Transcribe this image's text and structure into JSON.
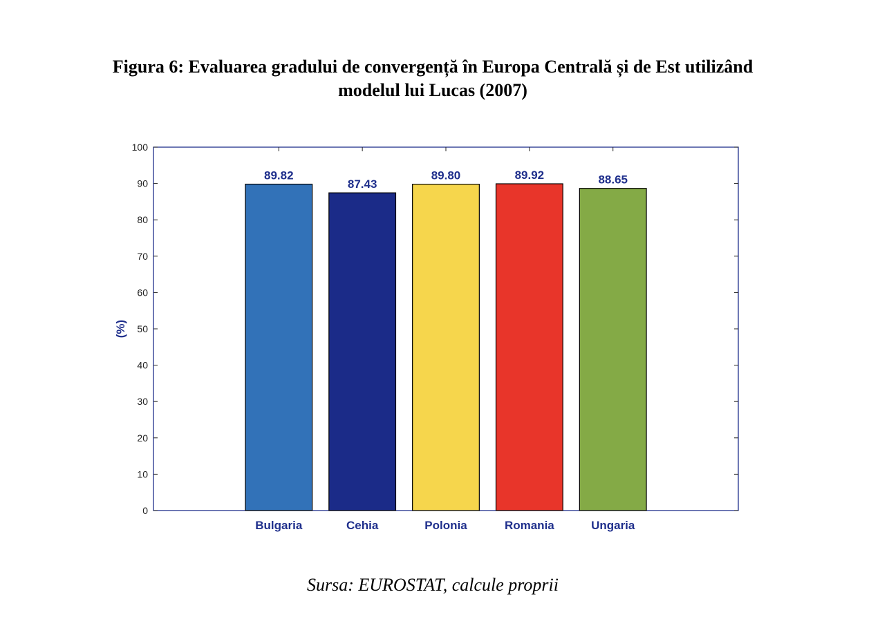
{
  "figure": {
    "title_line1": "Figura 6: Evaluarea gradului de convergență în Europa Centrală și de Est utilizând",
    "title_line2": "modelul lui Lucas (2007)",
    "source": "Sursa: EUROSTAT, calcule proprii"
  },
  "chart_data": {
    "type": "bar",
    "categories": [
      "Bulgaria",
      "Cehia",
      "Polonia",
      "Romania",
      "Ungaria"
    ],
    "values": [
      89.82,
      87.43,
      89.8,
      89.92,
      88.65
    ],
    "value_labels": [
      "89.82",
      "87.43",
      "89.80",
      "89.92",
      "88.65"
    ],
    "bar_colors": [
      "#3272b8",
      "#1b2b88",
      "#f6d64c",
      "#e8352a",
      "#84aa46"
    ],
    "xlabel": "",
    "ylabel": "(%)",
    "ylim": [
      0,
      100
    ],
    "yticks": [
      0,
      10,
      20,
      30,
      40,
      50,
      60,
      70,
      80,
      90,
      100
    ],
    "grid": false,
    "label_color": "#1f2f8c",
    "axis_color": "#1f2f8c"
  }
}
